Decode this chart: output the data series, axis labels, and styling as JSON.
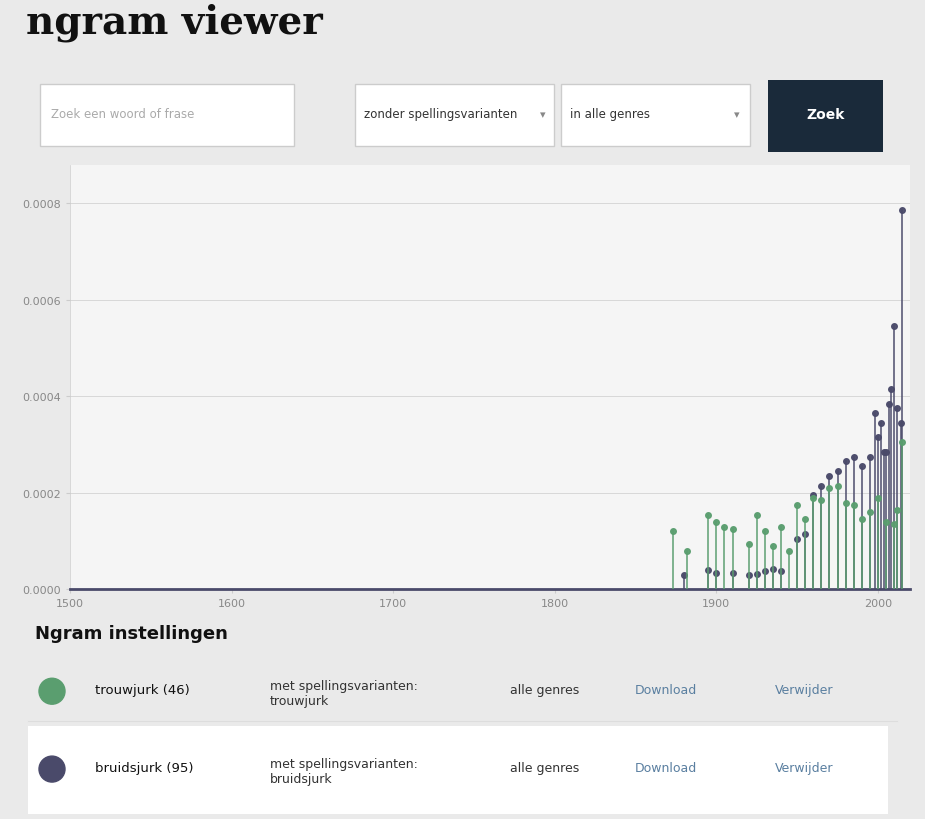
{
  "title": "ngram viewer",
  "background_color": "#eaeaea",
  "plot_background": "#f5f5f5",
  "xlim": [
    1500,
    2020
  ],
  "ylim": [
    0,
    0.00088
  ],
  "yticks": [
    0.0,
    0.0002,
    0.0004,
    0.0006,
    0.0008
  ],
  "xticks": [
    1500,
    1600,
    1700,
    1800,
    1900,
    2000
  ],
  "color_trouwjurk": "#5a9e6f",
  "color_bruidsjurk": "#4a4a6a",
  "trouwjurk_data": [
    [
      1873,
      0.00012
    ],
    [
      1882,
      8e-05
    ],
    [
      1895,
      0.000155
    ],
    [
      1900,
      0.00014
    ],
    [
      1905,
      0.00013
    ],
    [
      1910,
      0.000125
    ],
    [
      1920,
      9.5e-05
    ],
    [
      1925,
      0.000155
    ],
    [
      1930,
      0.00012
    ],
    [
      1935,
      9e-05
    ],
    [
      1940,
      0.00013
    ],
    [
      1945,
      8e-05
    ],
    [
      1950,
      0.000175
    ],
    [
      1955,
      0.000145
    ],
    [
      1960,
      0.00019
    ],
    [
      1965,
      0.000185
    ],
    [
      1970,
      0.00021
    ],
    [
      1975,
      0.000215
    ],
    [
      1980,
      0.00018
    ],
    [
      1985,
      0.000175
    ],
    [
      1990,
      0.000145
    ],
    [
      1995,
      0.00016
    ],
    [
      2000,
      0.00019
    ],
    [
      2005,
      0.00014
    ],
    [
      2010,
      0.000135
    ],
    [
      2012,
      0.000165
    ],
    [
      2015,
      0.000305
    ]
  ],
  "bruidsjurk_data": [
    [
      1880,
      3e-05
    ],
    [
      1895,
      4e-05
    ],
    [
      1900,
      3.5e-05
    ],
    [
      1910,
      3.5e-05
    ],
    [
      1920,
      3e-05
    ],
    [
      1925,
      3.2e-05
    ],
    [
      1930,
      3.8e-05
    ],
    [
      1935,
      4.2e-05
    ],
    [
      1940,
      3.8e-05
    ],
    [
      1950,
      0.000105
    ],
    [
      1955,
      0.000115
    ],
    [
      1960,
      0.000195
    ],
    [
      1965,
      0.000215
    ],
    [
      1970,
      0.000235
    ],
    [
      1975,
      0.000245
    ],
    [
      1980,
      0.000265
    ],
    [
      1985,
      0.000275
    ],
    [
      1990,
      0.000255
    ],
    [
      1995,
      0.000275
    ],
    [
      1998,
      0.000365
    ],
    [
      2000,
      0.000315
    ],
    [
      2002,
      0.000345
    ],
    [
      2004,
      0.000285
    ],
    [
      2005,
      0.000285
    ],
    [
      2007,
      0.000385
    ],
    [
      2008,
      0.000415
    ],
    [
      2010,
      0.000545
    ],
    [
      2012,
      0.000375
    ],
    [
      2014,
      0.000345
    ],
    [
      2015,
      0.000785
    ]
  ],
  "search_placeholder": "Zoek een woord of frase",
  "dropdown1": "zonder spellingsvarianten",
  "dropdown2": "in alle genres",
  "button_text": "Zoek",
  "section_title": "Ngram instellingen",
  "word1": "trouwjurk",
  "word1_count": " (46)",
  "word1_sub": "met spellingsvarianten:\ntrouwjurk",
  "word2": "bruidsjurk",
  "word2_count": " (95)",
  "word2_sub": "met spellingsvarianten:\nbruidsjurk",
  "genres_label": "alle genres",
  "download_label": "Download",
  "remove_label": "Verwijder",
  "link_color": "#5a7fa0",
  "row2_bg": "#ffffff"
}
